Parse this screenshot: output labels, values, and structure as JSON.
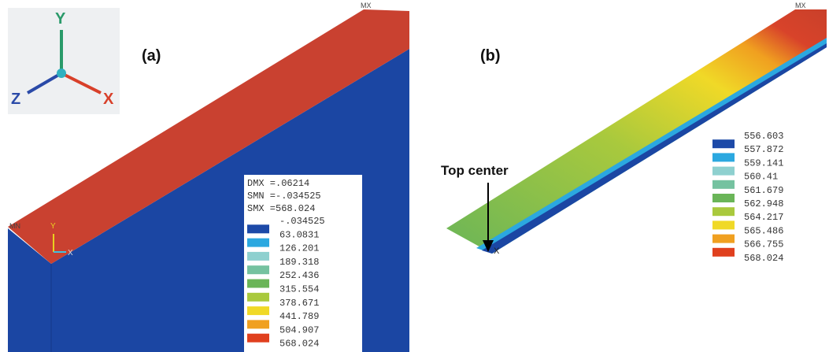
{
  "triad": {
    "y": "Y",
    "z": "Z",
    "x": "X"
  },
  "panel_a": {
    "label": "(a)",
    "max_marker": "MX",
    "min_marker": "MN",
    "small_triad": {
      "y": "Y",
      "x": "X"
    },
    "legend": {
      "header": [
        "DMX =.06214",
        "SMN =-.034525",
        "SMX =568.024"
      ],
      "first": "-.034525",
      "values": [
        "63.0831",
        "126.201",
        "189.318",
        "252.436",
        "315.554",
        "378.671",
        "441.789",
        "504.907",
        "568.024"
      ]
    }
  },
  "panel_b": {
    "label": "(b)",
    "max_marker": "MX",
    "annotation": "Top center",
    "small_triad": {
      "x": "X"
    },
    "legend": {
      "first": "556.603",
      "values": [
        "557.872",
        "559.141",
        "560.41",
        "561.679",
        "562.948",
        "564.217",
        "565.486",
        "566.755",
        "568.024"
      ]
    }
  }
}
